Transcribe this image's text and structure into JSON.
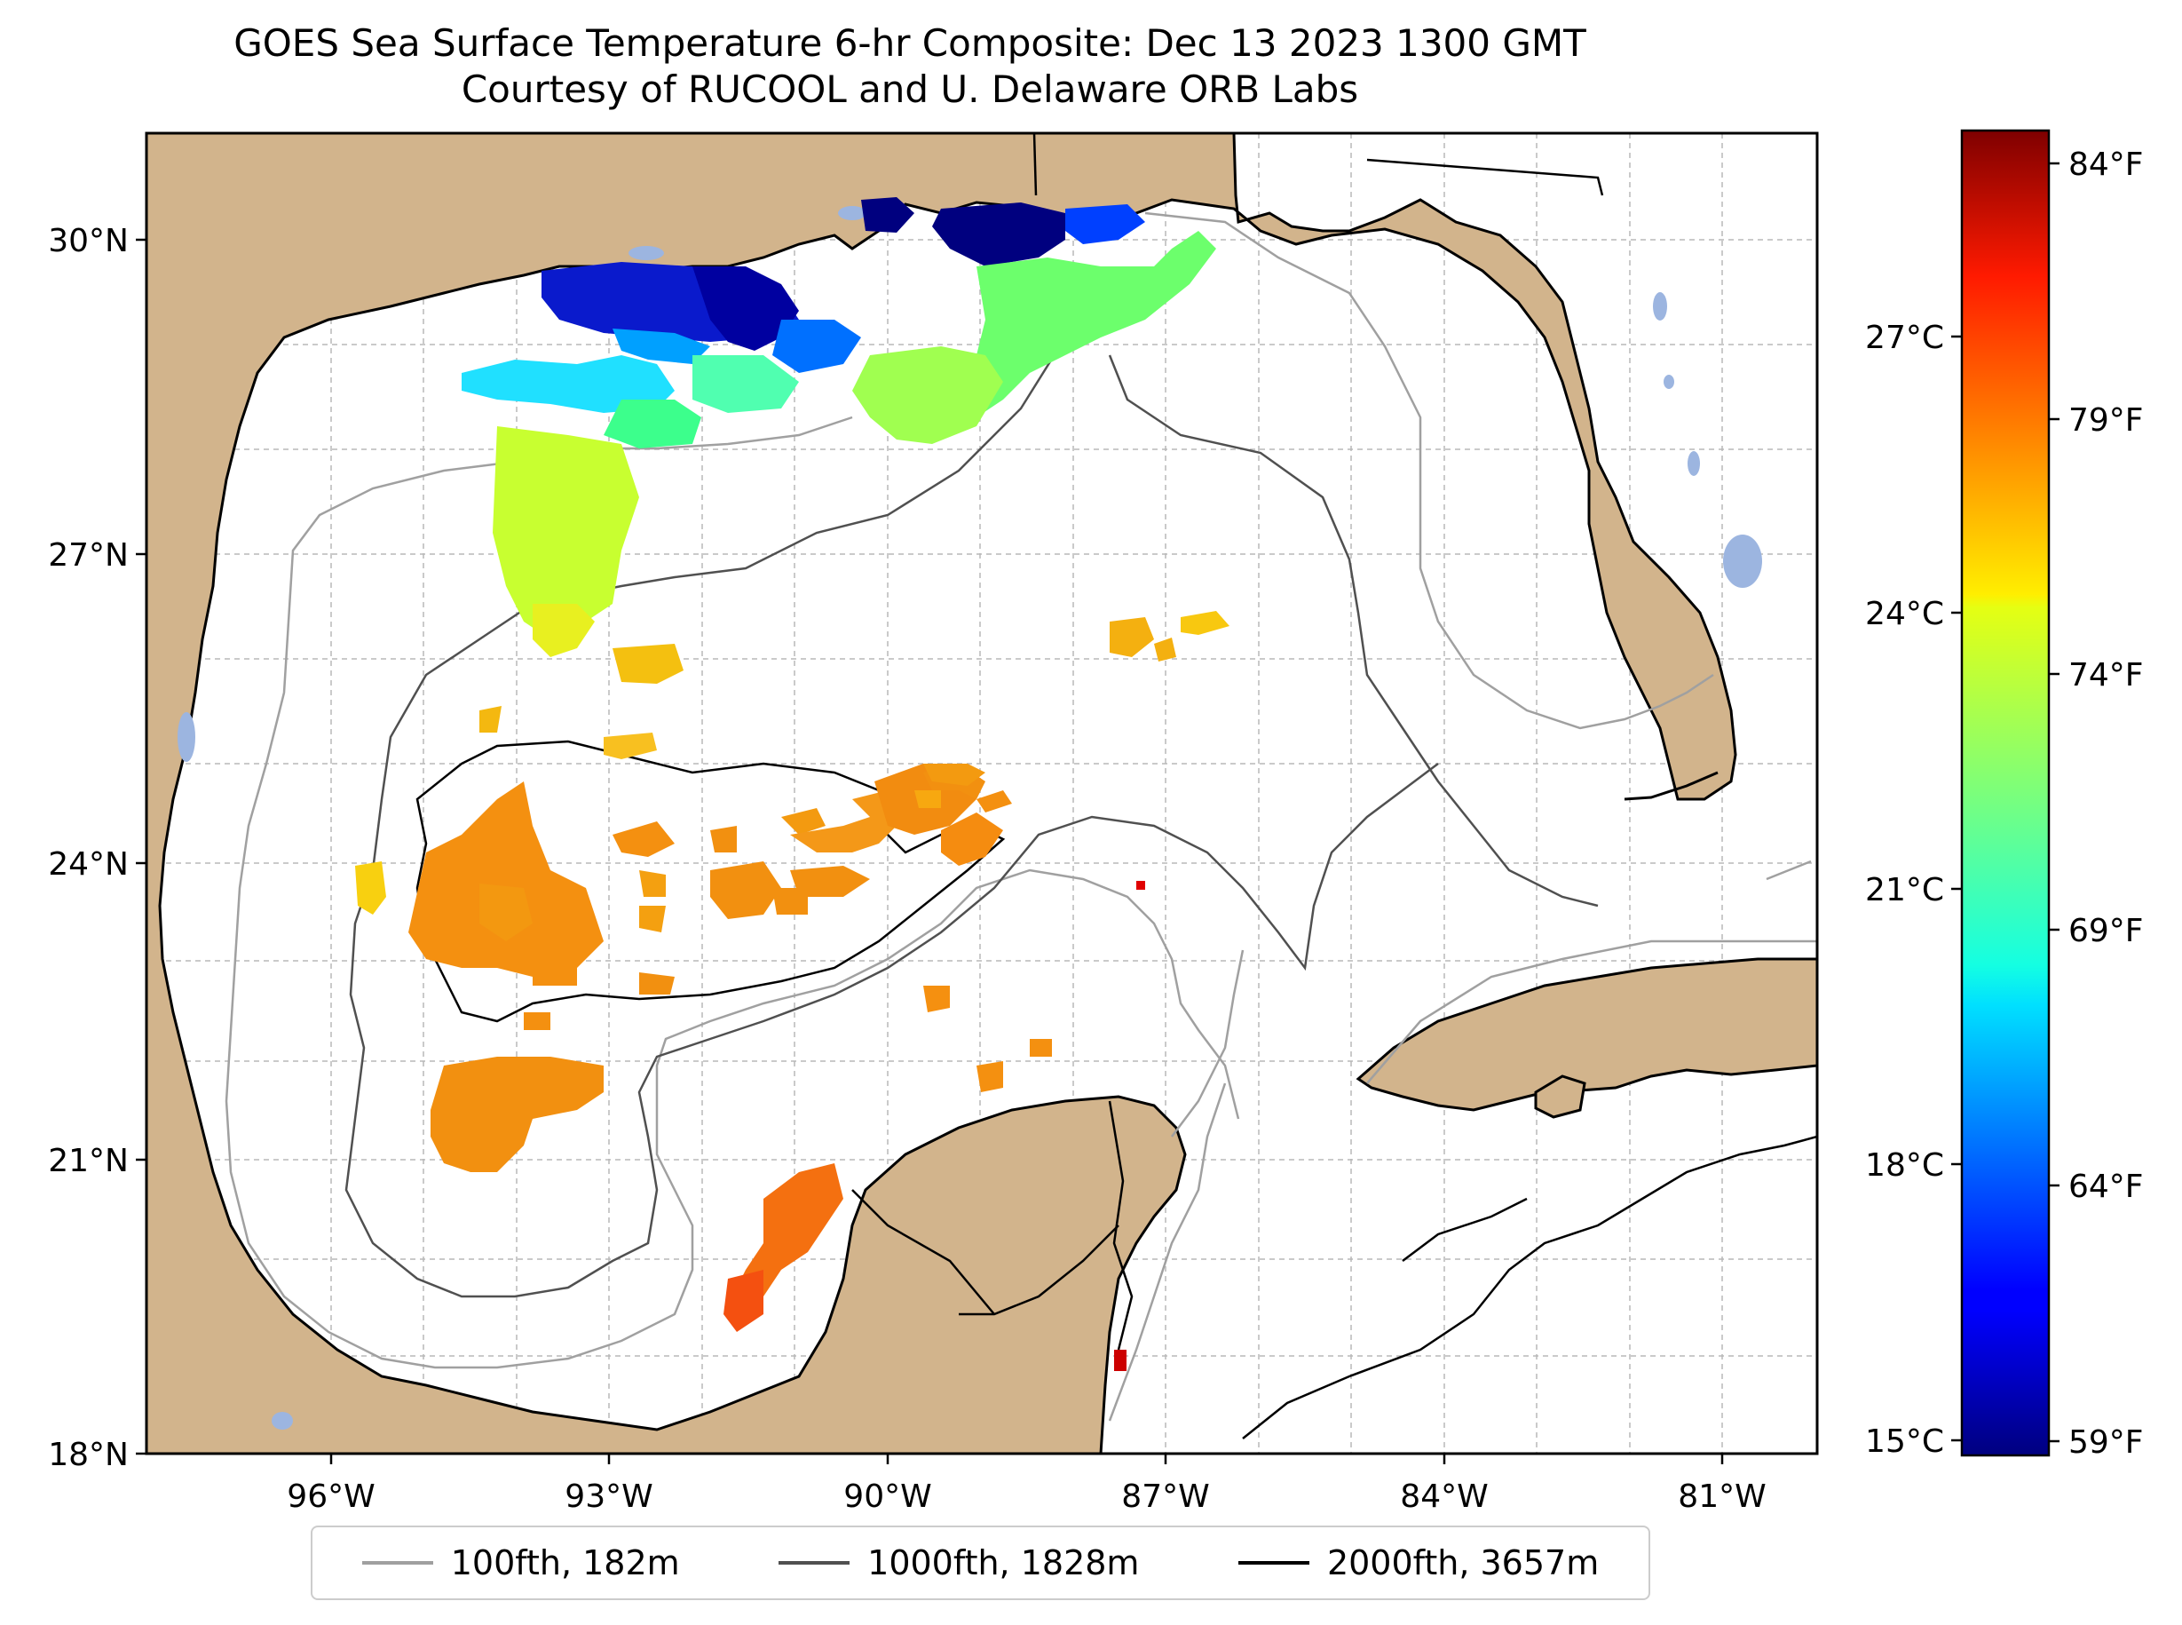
{
  "title": {
    "line1": "GOES Sea Surface Temperature 6-hr Composite: Dec 13 2023 1300 GMT",
    "line2": "Courtesy of RUCOOL and U. Delaware ORB Labs"
  },
  "map": {
    "region": "Gulf of Mexico",
    "lon_range": [
      -98,
      -80
    ],
    "lat_range": [
      18,
      31
    ],
    "land_color": "#d2b48c",
    "ocean_color": "#ffffff",
    "lake_color": "#9cb5e0",
    "lat_labels": [
      "30°N",
      "27°N",
      "24°N",
      "21°N",
      "18°N"
    ],
    "lon_labels": [
      "96°W",
      "93°W",
      "90°W",
      "87°W",
      "84°W",
      "81°W"
    ]
  },
  "colorbar": {
    "colormap": "jet",
    "celsius_labels": [
      "27°C",
      "24°C",
      "21°C",
      "18°C",
      "15°C"
    ],
    "fahrenheit_labels": [
      "84°F",
      "79°F",
      "74°F",
      "69°F",
      "64°F",
      "59°F"
    ]
  },
  "legend": [
    {
      "label": "100fth, 182m",
      "color": "#a0a0a0"
    },
    {
      "label": "1000fth, 1828m",
      "color": "#505050"
    },
    {
      "label": "2000fth, 3657m",
      "color": "#000000"
    }
  ]
}
